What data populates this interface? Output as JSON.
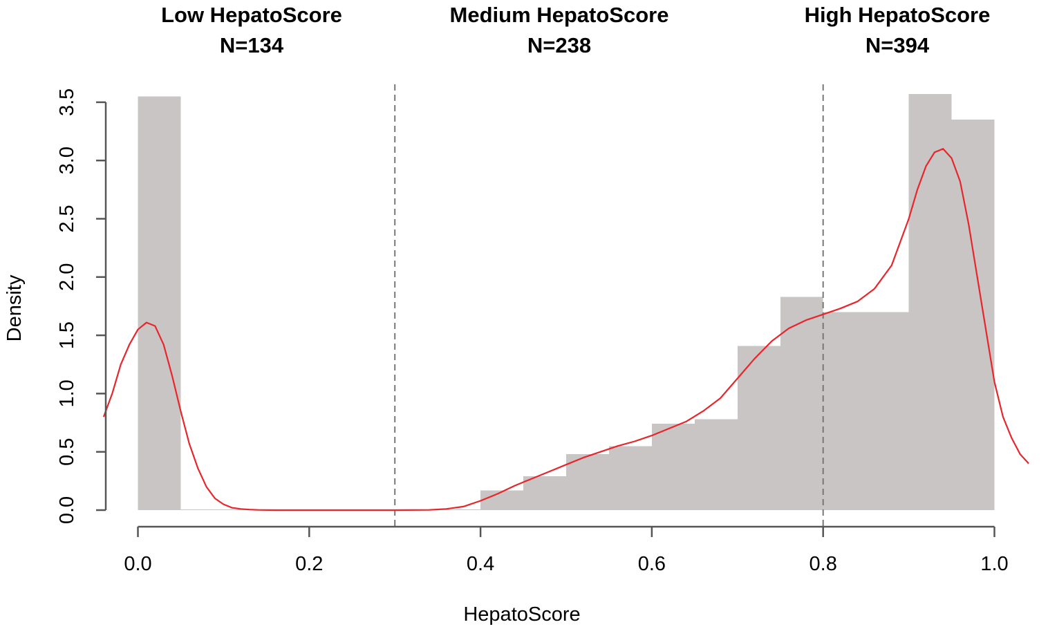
{
  "chart_data": {
    "type": "bar",
    "subtype": "histogram-with-density",
    "xlabel": "HepatoScore",
    "ylabel": "Density",
    "xlim": [
      -0.04,
      1.04
    ],
    "ylim": [
      0,
      3.6
    ],
    "x_ticks": [
      "0.0",
      "0.2",
      "0.4",
      "0.6",
      "0.8",
      "1.0"
    ],
    "x_tick_values": [
      0.0,
      0.2,
      0.4,
      0.6,
      0.8,
      1.0
    ],
    "y_ticks": [
      "0.0",
      "0.5",
      "1.0",
      "1.5",
      "2.0",
      "2.5",
      "3.0",
      "3.5"
    ],
    "y_tick_values": [
      0.0,
      0.5,
      1.0,
      1.5,
      2.0,
      2.5,
      3.0,
      3.5
    ],
    "bin_width": 0.05,
    "bins": [
      {
        "start": 0.0,
        "end": 0.05,
        "density": 3.55
      },
      {
        "start": 0.05,
        "end": 0.1,
        "density": 0.0
      },
      {
        "start": 0.1,
        "end": 0.15,
        "density": 0.0
      },
      {
        "start": 0.15,
        "end": 0.2,
        "density": 0.0
      },
      {
        "start": 0.2,
        "end": 0.25,
        "density": 0.0
      },
      {
        "start": 0.25,
        "end": 0.3,
        "density": 0.0
      },
      {
        "start": 0.3,
        "end": 0.35,
        "density": 0.0
      },
      {
        "start": 0.35,
        "end": 0.4,
        "density": 0.0
      },
      {
        "start": 0.4,
        "end": 0.45,
        "density": 0.17
      },
      {
        "start": 0.45,
        "end": 0.5,
        "density": 0.29
      },
      {
        "start": 0.5,
        "end": 0.55,
        "density": 0.48
      },
      {
        "start": 0.55,
        "end": 0.6,
        "density": 0.55
      },
      {
        "start": 0.6,
        "end": 0.65,
        "density": 0.74
      },
      {
        "start": 0.65,
        "end": 0.7,
        "density": 0.78
      },
      {
        "start": 0.7,
        "end": 0.75,
        "density": 1.41
      },
      {
        "start": 0.75,
        "end": 0.8,
        "density": 1.83
      },
      {
        "start": 0.8,
        "end": 0.85,
        "density": 1.7
      },
      {
        "start": 0.85,
        "end": 0.9,
        "density": 1.7
      },
      {
        "start": 0.9,
        "end": 0.95,
        "density": 3.57
      },
      {
        "start": 0.95,
        "end": 1.0,
        "density": 3.35
      }
    ],
    "density_curve": {
      "x": [
        -0.04,
        -0.03,
        -0.02,
        -0.01,
        0.0,
        0.01,
        0.02,
        0.03,
        0.04,
        0.05,
        0.06,
        0.07,
        0.08,
        0.09,
        0.1,
        0.11,
        0.12,
        0.13,
        0.14,
        0.16,
        0.2,
        0.3,
        0.34,
        0.36,
        0.38,
        0.4,
        0.42,
        0.44,
        0.46,
        0.48,
        0.5,
        0.52,
        0.54,
        0.56,
        0.58,
        0.6,
        0.62,
        0.64,
        0.66,
        0.68,
        0.7,
        0.72,
        0.74,
        0.76,
        0.78,
        0.8,
        0.82,
        0.84,
        0.86,
        0.88,
        0.9,
        0.91,
        0.92,
        0.93,
        0.94,
        0.95,
        0.96,
        0.97,
        0.98,
        0.99,
        1.0,
        1.01,
        1.02,
        1.03,
        1.04
      ],
      "y": [
        0.8,
        1.0,
        1.25,
        1.42,
        1.55,
        1.61,
        1.58,
        1.42,
        1.15,
        0.85,
        0.57,
        0.36,
        0.2,
        0.1,
        0.05,
        0.02,
        0.01,
        0.005,
        0.002,
        0.0,
        0.0,
        0.0,
        0.002,
        0.01,
        0.03,
        0.08,
        0.14,
        0.21,
        0.27,
        0.33,
        0.39,
        0.45,
        0.5,
        0.55,
        0.59,
        0.64,
        0.7,
        0.76,
        0.85,
        0.96,
        1.13,
        1.3,
        1.45,
        1.56,
        1.63,
        1.68,
        1.73,
        1.79,
        1.9,
        2.1,
        2.5,
        2.75,
        2.95,
        3.07,
        3.1,
        3.02,
        2.82,
        2.45,
        2.0,
        1.55,
        1.1,
        0.8,
        0.62,
        0.48,
        0.4
      ]
    },
    "cutoffs": [
      0.3,
      0.8
    ],
    "groups": [
      {
        "name": "Low HepatoScore",
        "n_label": "N=134"
      },
      {
        "name": "Medium HepatoScore",
        "n_label": "N=238"
      },
      {
        "name": "High HepatoScore",
        "n_label": "N=394"
      }
    ],
    "colors": {
      "bars": "#c9c5c4",
      "curve": "#e8252a",
      "cutoff_line": "#777777",
      "axis": "#555555"
    },
    "grid": false,
    "legend": "none"
  }
}
